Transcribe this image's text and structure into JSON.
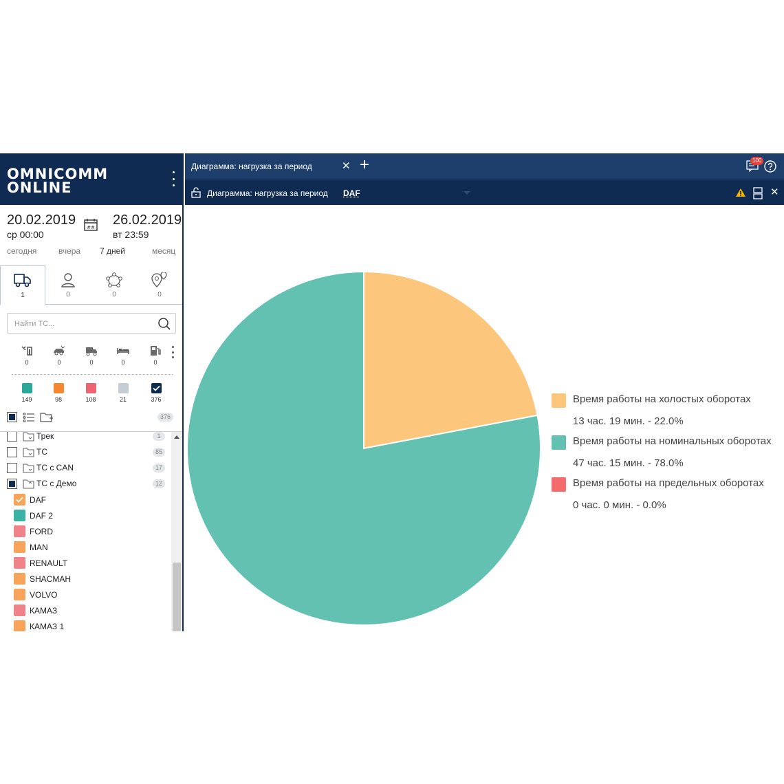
{
  "brand": {
    "line1": "OMNICOMM",
    "line2": "ONLINE"
  },
  "period": {
    "from_date": "20.02.2019",
    "from_time": "ср 00:00",
    "to_date": "26.02.2019",
    "to_time": "вт 23:59",
    "presets": [
      "сегодня",
      "вчера",
      "7 дней",
      "месяц"
    ],
    "selected_preset": "7 дней"
  },
  "object_tabs": [
    {
      "icon": "truck-icon",
      "count": "1"
    },
    {
      "icon": "person-icon",
      "count": "0"
    },
    {
      "icon": "geozone-icon",
      "count": "0"
    },
    {
      "icon": "location-pin-icon",
      "count": "0"
    }
  ],
  "search": {
    "placeholder": "Найти ТС..."
  },
  "state_filters": [
    {
      "icon": "repair-icon",
      "count": "0"
    },
    {
      "icon": "accident-car-icon",
      "count": "0"
    },
    {
      "icon": "loaded-truck-icon",
      "count": "0"
    },
    {
      "icon": "bed-icon",
      "count": "0"
    },
    {
      "icon": "fuel-pump-icon",
      "count": "0"
    }
  ],
  "status_filters": [
    {
      "color": "#2aa99b",
      "count": "149"
    },
    {
      "color": "#f5872e",
      "count": "98"
    },
    {
      "color": "#ee6470",
      "count": "108"
    },
    {
      "color": "#c5ccd4",
      "count": "21"
    },
    {
      "color": "#0f2b52",
      "count": "376",
      "checked": true
    }
  ],
  "list_total": "376",
  "groups": [
    {
      "label": "Трек",
      "count": "1"
    },
    {
      "label": "ТС",
      "count": "85"
    },
    {
      "label": "ТС с CAN",
      "count": "17"
    },
    {
      "label": "ТС с Демо",
      "count": "12"
    }
  ],
  "vehicles": [
    {
      "label": "DAF",
      "color": "#f8a35a",
      "checked": true
    },
    {
      "label": "DAF 2",
      "color": "#3bb3a4"
    },
    {
      "label": "FORD",
      "color": "#f0838a"
    },
    {
      "label": "MAN",
      "color": "#f8a35a"
    },
    {
      "label": "RENAULT",
      "color": "#f0838a"
    },
    {
      "label": "SHACMAH",
      "color": "#f8a35a"
    },
    {
      "label": "VOLVO",
      "color": "#f8a35a"
    },
    {
      "label": "КАМАЗ",
      "color": "#f0838a"
    },
    {
      "label": "КАМАЗ 1",
      "color": "#f8a35a"
    }
  ],
  "tabs": {
    "active_label": "Диаграмма: нагрузка за период",
    "notifications_badge": "100"
  },
  "report": {
    "title": "Диаграмма: нагрузка за период",
    "object": "DAF"
  },
  "chart_data": {
    "type": "pie",
    "series": [
      {
        "name": "Время работы на холостых оборотах",
        "value_label": "13 час. 19 мин. - 22.0%",
        "percent": 22.0,
        "color": "#fcc77c"
      },
      {
        "name": "Время работы на номинальных оборотах",
        "value_label": "47 час. 15 мин. - 78.0%",
        "percent": 78.0,
        "color": "#63c1b2"
      },
      {
        "name": "Время работы на предельных оборотах",
        "value_label": "0 час. 0 мин. - 0.0%",
        "percent": 0.0,
        "color": "#f36b6d"
      }
    ],
    "legend_position": "right"
  }
}
